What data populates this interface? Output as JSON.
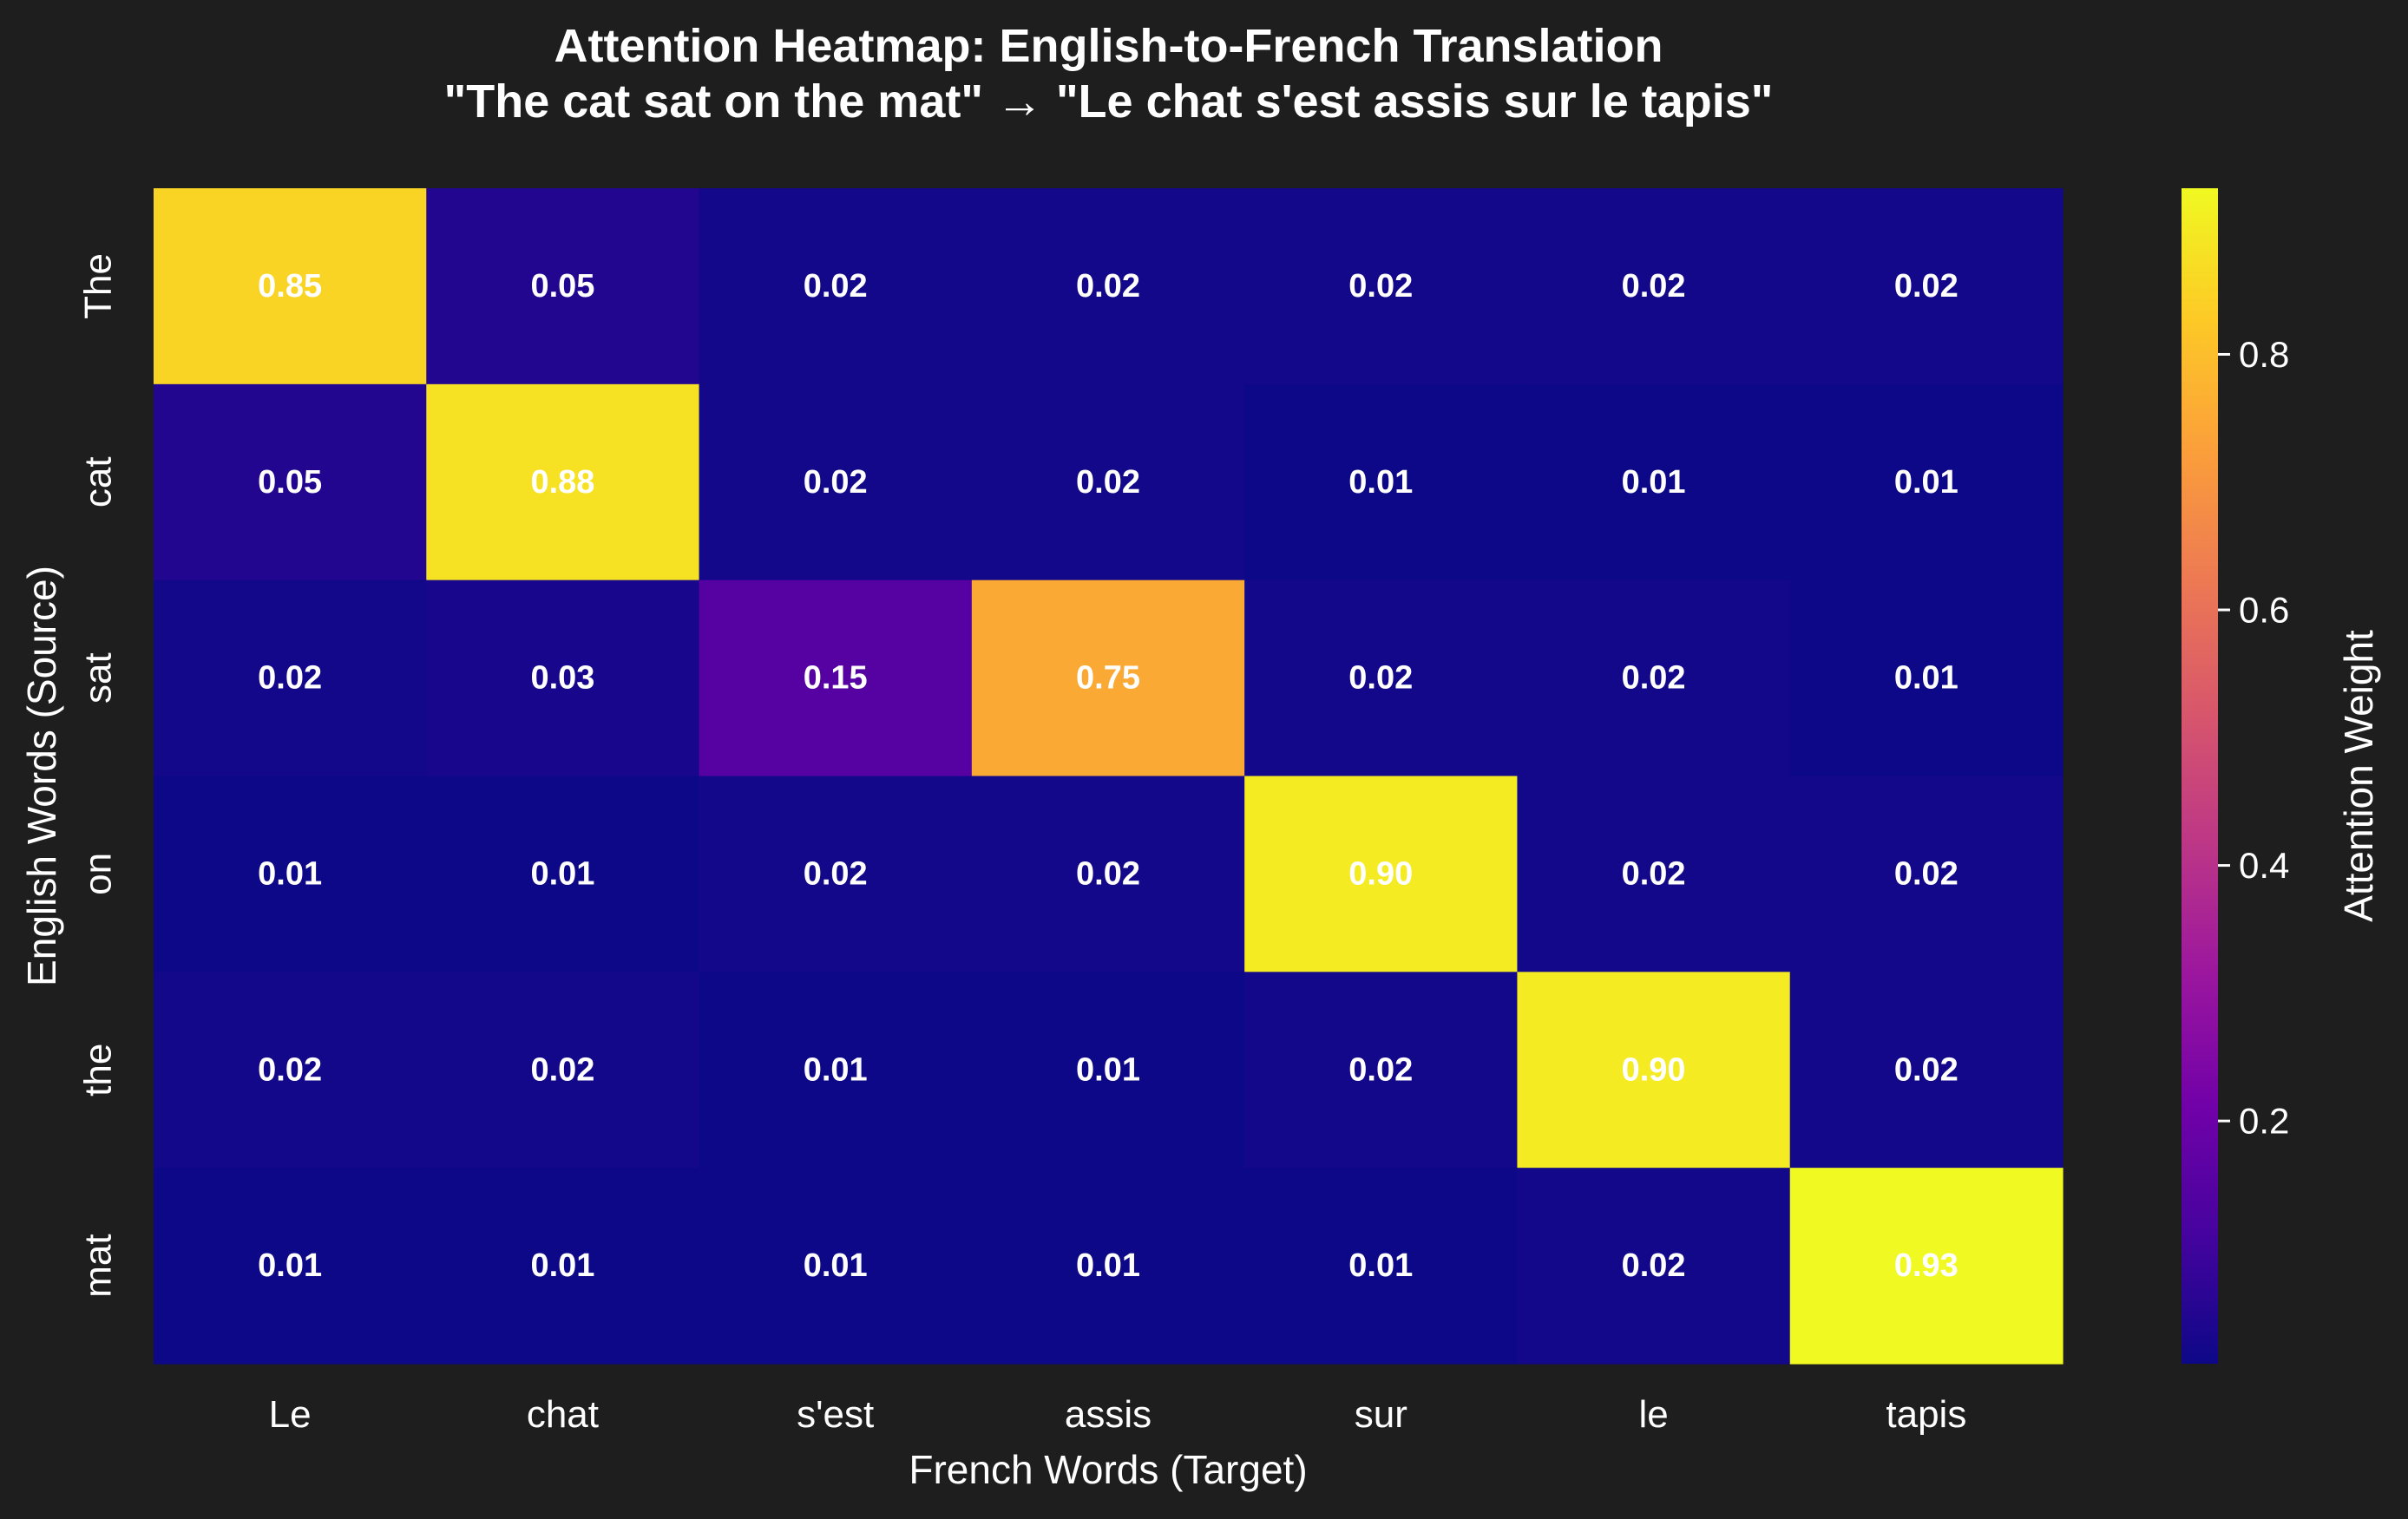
{
  "chart_data": {
    "type": "heatmap",
    "title": "Attention Heatmap: English-to-French Translation",
    "subtitle": "\"The cat sat on the mat\" → \"Le chat s'est assis sur le tapis\"",
    "xlabel": "French Words (Target)",
    "ylabel": "English Words (Source)",
    "x_categories": [
      "Le",
      "chat",
      "s'est",
      "assis",
      "sur",
      "le",
      "tapis"
    ],
    "y_categories": [
      "The",
      "cat",
      "sat",
      "on",
      "the",
      "mat"
    ],
    "values": [
      [
        0.85,
        0.05,
        0.02,
        0.02,
        0.02,
        0.02,
        0.02
      ],
      [
        0.05,
        0.88,
        0.02,
        0.02,
        0.01,
        0.01,
        0.01
      ],
      [
        0.02,
        0.03,
        0.15,
        0.75,
        0.02,
        0.02,
        0.01
      ],
      [
        0.01,
        0.01,
        0.02,
        0.02,
        0.9,
        0.02,
        0.02
      ],
      [
        0.02,
        0.02,
        0.01,
        0.01,
        0.02,
        0.9,
        0.02
      ],
      [
        0.01,
        0.01,
        0.01,
        0.01,
        0.01,
        0.02,
        0.93
      ]
    ],
    "value_labels": [
      [
        "0.85",
        "0.05",
        "0.02",
        "0.02",
        "0.02",
        "0.02",
        "0.02"
      ],
      [
        "0.05",
        "0.88",
        "0.02",
        "0.02",
        "0.01",
        "0.01",
        "0.01"
      ],
      [
        "0.02",
        "0.03",
        "0.15",
        "0.75",
        "0.02",
        "0.02",
        "0.01"
      ],
      [
        "0.01",
        "0.01",
        "0.02",
        "0.02",
        "0.90",
        "0.02",
        "0.02"
      ],
      [
        "0.02",
        "0.02",
        "0.01",
        "0.01",
        "0.02",
        "0.90",
        "0.02"
      ],
      [
        "0.01",
        "0.01",
        "0.01",
        "0.01",
        "0.01",
        "0.02",
        "0.93"
      ]
    ],
    "colormap": "plasma",
    "color_range": [
      0.01,
      0.93
    ],
    "colorbar": {
      "label": "Attention Weight",
      "ticks": [
        0.2,
        0.4,
        0.6,
        0.8
      ],
      "tick_labels": [
        "0.2",
        "0.4",
        "0.6",
        "0.8"
      ]
    },
    "grid": false
  },
  "colors": {
    "background": "#1e1e1e",
    "text": "#ffffff",
    "plasma_stops": [
      "#0d0887",
      "#46039f",
      "#7201a8",
      "#9c179e",
      "#bd3786",
      "#d8576b",
      "#ed7953",
      "#fb9f3a",
      "#fdca26",
      "#f0f921"
    ]
  }
}
